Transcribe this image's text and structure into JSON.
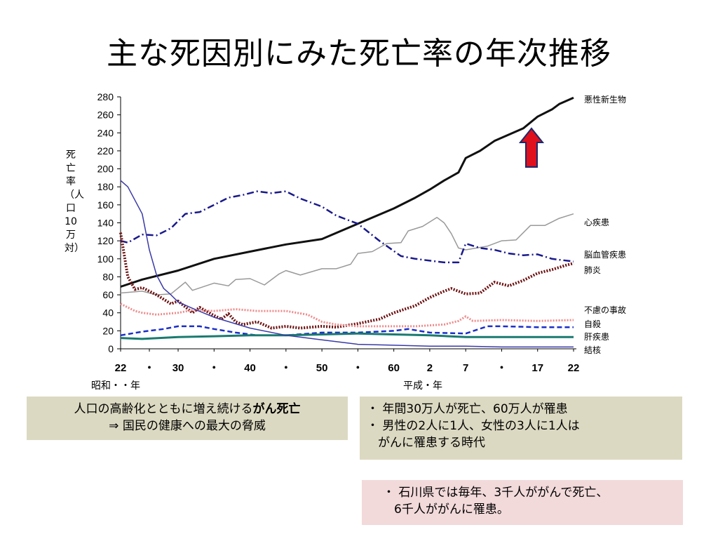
{
  "title": "主な死因別にみた死亡率の年次推移",
  "chart_data": {
    "type": "line",
    "ylabel": "死亡率（人口10万対）",
    "ylim": [
      0,
      280
    ],
    "yticks": [
      0,
      20,
      40,
      60,
      80,
      100,
      120,
      140,
      160,
      180,
      200,
      220,
      240,
      260,
      280
    ],
    "x_tick_labels": [
      "22",
      "・",
      "30",
      "・",
      "40",
      "・",
      "50",
      "・",
      "60",
      "2",
      "7",
      "・",
      "17",
      "22"
    ],
    "x_tick_years": [
      1947,
      1951,
      1955,
      1960,
      1965,
      1970,
      1975,
      1980,
      1985,
      1990,
      1995,
      2000,
      2005,
      2010
    ],
    "x_era_showa": "昭和・・年",
    "x_era_heisei": "平成・年",
    "series": [
      {
        "name": "悪性新生物",
        "color": "#111111",
        "style": "solid-thick",
        "points": [
          [
            1947,
            69
          ],
          [
            1950,
            77
          ],
          [
            1955,
            87
          ],
          [
            1960,
            100
          ],
          [
            1965,
            108
          ],
          [
            1970,
            116
          ],
          [
            1975,
            122
          ],
          [
            1980,
            139
          ],
          [
            1985,
            156
          ],
          [
            1988,
            168
          ],
          [
            1990,
            177
          ],
          [
            1992,
            187
          ],
          [
            1994,
            196
          ],
          [
            1995,
            212
          ],
          [
            1997,
            220
          ],
          [
            1999,
            231
          ],
          [
            2003,
            245
          ],
          [
            2005,
            258
          ],
          [
            2007,
            266
          ],
          [
            2008,
            272
          ],
          [
            2010,
            279
          ]
        ]
      },
      {
        "name": "心疾患",
        "color": "#999999",
        "style": "solid",
        "points": [
          [
            1947,
            62
          ],
          [
            1950,
            64
          ],
          [
            1952,
            60
          ],
          [
            1954,
            61
          ],
          [
            1956,
            74
          ],
          [
            1957,
            65
          ],
          [
            1960,
            73
          ],
          [
            1962,
            70
          ],
          [
            1963,
            77
          ],
          [
            1965,
            78
          ],
          [
            1967,
            71
          ],
          [
            1969,
            83
          ],
          [
            1970,
            87
          ],
          [
            1972,
            82
          ],
          [
            1975,
            89
          ],
          [
            1977,
            89
          ],
          [
            1979,
            94
          ],
          [
            1980,
            106
          ],
          [
            1982,
            108
          ],
          [
            1984,
            117
          ],
          [
            1986,
            118
          ],
          [
            1987,
            131
          ],
          [
            1989,
            136
          ],
          [
            1991,
            146
          ],
          [
            1992,
            140
          ],
          [
            1993,
            128
          ],
          [
            1994,
            112
          ],
          [
            1995,
            110
          ],
          [
            1998,
            114
          ],
          [
            2000,
            120
          ],
          [
            2002,
            121
          ],
          [
            2004,
            137
          ],
          [
            2006,
            137
          ],
          [
            2008,
            145
          ],
          [
            2010,
            150
          ]
        ]
      },
      {
        "name": "脳血管疾患",
        "color": "#1a1a8c",
        "style": "dashdot",
        "points": [
          [
            1947,
            120
          ],
          [
            1948,
            118
          ],
          [
            1950,
            127
          ],
          [
            1952,
            126
          ],
          [
            1954,
            134
          ],
          [
            1956,
            150
          ],
          [
            1958,
            152
          ],
          [
            1960,
            160
          ],
          [
            1962,
            168
          ],
          [
            1964,
            171
          ],
          [
            1966,
            175
          ],
          [
            1968,
            173
          ],
          [
            1970,
            175
          ],
          [
            1972,
            167
          ],
          [
            1975,
            158
          ],
          [
            1977,
            148
          ],
          [
            1980,
            139
          ],
          [
            1983,
            120
          ],
          [
            1986,
            103
          ],
          [
            1988,
            100
          ],
          [
            1990,
            98
          ],
          [
            1992,
            96
          ],
          [
            1994,
            96
          ],
          [
            1995,
            117
          ],
          [
            1997,
            112
          ],
          [
            1999,
            110
          ],
          [
            2001,
            106
          ],
          [
            2003,
            104
          ],
          [
            2005,
            105
          ],
          [
            2007,
            100
          ],
          [
            2010,
            97
          ]
        ]
      },
      {
        "name": "肺炎",
        "color": "#6b0f0f",
        "style": "dotted-thick",
        "points": [
          [
            1947,
            129
          ],
          [
            1948,
            80
          ],
          [
            1949,
            66
          ],
          [
            1950,
            68
          ],
          [
            1952,
            60
          ],
          [
            1954,
            50
          ],
          [
            1955,
            53
          ],
          [
            1957,
            40
          ],
          [
            1958,
            46
          ],
          [
            1960,
            37
          ],
          [
            1961,
            33
          ],
          [
            1962,
            39
          ],
          [
            1963,
            30
          ],
          [
            1964,
            27
          ],
          [
            1966,
            30
          ],
          [
            1968,
            23
          ],
          [
            1970,
            25
          ],
          [
            1972,
            23
          ],
          [
            1975,
            25
          ],
          [
            1977,
            24
          ],
          [
            1980,
            28
          ],
          [
            1983,
            33
          ],
          [
            1985,
            40
          ],
          [
            1988,
            48
          ],
          [
            1990,
            57
          ],
          [
            1992,
            64
          ],
          [
            1993,
            67
          ],
          [
            1995,
            61
          ],
          [
            1997,
            62
          ],
          [
            1999,
            74
          ],
          [
            2001,
            70
          ],
          [
            2003,
            76
          ],
          [
            2005,
            84
          ],
          [
            2007,
            88
          ],
          [
            2009,
            93
          ],
          [
            2010,
            95
          ]
        ]
      },
      {
        "name": "不慮の事故",
        "color": "#f08a8a",
        "style": "dotted",
        "points": [
          [
            1947,
            50
          ],
          [
            1949,
            42
          ],
          [
            1950,
            40
          ],
          [
            1952,
            38
          ],
          [
            1955,
            40
          ],
          [
            1957,
            43
          ],
          [
            1960,
            42
          ],
          [
            1963,
            44
          ],
          [
            1966,
            42
          ],
          [
            1970,
            42
          ],
          [
            1973,
            38
          ],
          [
            1975,
            30
          ],
          [
            1977,
            27
          ],
          [
            1980,
            25
          ],
          [
            1984,
            25
          ],
          [
            1988,
            25
          ],
          [
            1992,
            27
          ],
          [
            1994,
            31
          ],
          [
            1995,
            36
          ],
          [
            1996,
            31
          ],
          [
            2000,
            32
          ],
          [
            2005,
            31
          ],
          [
            2010,
            32
          ]
        ]
      },
      {
        "name": "自殺",
        "color": "#1a2ec8",
        "style": "dashed",
        "points": [
          [
            1947,
            15
          ],
          [
            1950,
            19
          ],
          [
            1953,
            22
          ],
          [
            1955,
            25
          ],
          [
            1958,
            25
          ],
          [
            1960,
            22
          ],
          [
            1963,
            18
          ],
          [
            1966,
            15
          ],
          [
            1970,
            15
          ],
          [
            1975,
            18
          ],
          [
            1980,
            18
          ],
          [
            1985,
            20
          ],
          [
            1987,
            22
          ],
          [
            1990,
            18
          ],
          [
            1995,
            17
          ],
          [
            1998,
            25
          ],
          [
            2000,
            25
          ],
          [
            2005,
            24
          ],
          [
            2010,
            24
          ]
        ]
      },
      {
        "name": "肝疾患",
        "color": "#1a7a70",
        "style": "solid-thick",
        "points": [
          [
            1947,
            12
          ],
          [
            1950,
            11
          ],
          [
            1955,
            13
          ],
          [
            1960,
            14
          ],
          [
            1965,
            15
          ],
          [
            1970,
            15
          ],
          [
            1975,
            16
          ],
          [
            1980,
            17
          ],
          [
            1985,
            16
          ],
          [
            1990,
            15
          ],
          [
            1995,
            13
          ],
          [
            2000,
            13
          ],
          [
            2005,
            13
          ],
          [
            2010,
            13
          ]
        ]
      },
      {
        "name": "結核",
        "color": "#3a3aa8",
        "style": "solid",
        "points": [
          [
            1947,
            187
          ],
          [
            1948,
            180
          ],
          [
            1950,
            150
          ],
          [
            1951,
            110
          ],
          [
            1952,
            82
          ],
          [
            1953,
            67
          ],
          [
            1954,
            60
          ],
          [
            1955,
            52
          ],
          [
            1957,
            45
          ],
          [
            1960,
            35
          ],
          [
            1965,
            23
          ],
          [
            1970,
            15
          ],
          [
            1975,
            10
          ],
          [
            1980,
            5
          ],
          [
            1985,
            4
          ],
          [
            1990,
            3
          ],
          [
            1995,
            3
          ],
          [
            2000,
            2
          ],
          [
            2005,
            2
          ],
          [
            2010,
            2
          ]
        ]
      }
    ]
  },
  "boxes": {
    "left": {
      "line1_pre": "人口の高齢化とともに増え続ける",
      "line1_bold": "がん死亡",
      "line2": "⇒  国民の健康への最大の脅威"
    },
    "right": {
      "line1": "・ 年間30万人が死亡、60万人が罹患",
      "line2": "・ 男性の2人に1人、女性の3人に1人は",
      "line3": "がんに罹患する時代"
    },
    "pink": {
      "line1": "・ 石川県では毎年、3千人ががんで死亡、",
      "line2": "6千人ががんに罹患。"
    }
  },
  "arrow": {
    "color": "#e0101c",
    "border": "#1a2a6e"
  }
}
